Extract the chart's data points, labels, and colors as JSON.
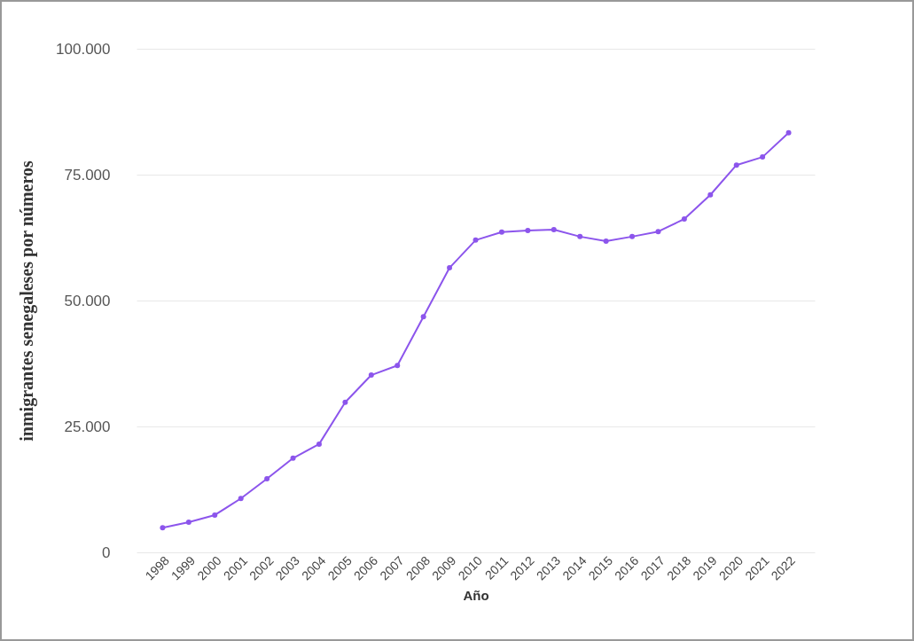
{
  "chart_data": {
    "type": "line",
    "xlabel": "Año",
    "ylabel": "inmigrantes senegaleses por números",
    "categories": [
      "1998",
      "1999",
      "2000",
      "2001",
      "2002",
      "2003",
      "2004",
      "2005",
      "2006",
      "2007",
      "2008",
      "2009",
      "2010",
      "2011",
      "2012",
      "2013",
      "2014",
      "2015",
      "2016",
      "2017",
      "2018",
      "2019",
      "2020",
      "2021",
      "2022"
    ],
    "series": [
      {
        "color": "#8c55ec",
        "values": [
          4900,
          6000,
          7400,
          10700,
          14600,
          18700,
          21500,
          29800,
          35200,
          37100,
          46800,
          56500,
          62000,
          63600,
          63900,
          64100,
          62700,
          61800,
          62700,
          63700,
          66200,
          71000,
          76900,
          78500,
          83300
        ]
      }
    ],
    "ylim": [
      0,
      100000
    ],
    "yticks": [
      {
        "value": 0,
        "label": "0"
      },
      {
        "value": 25000,
        "label": "25.000"
      },
      {
        "value": 50000,
        "label": "50.000"
      },
      {
        "value": 75000,
        "label": "75.000"
      },
      {
        "value": 100000,
        "label": "100.000"
      }
    ],
    "grid": "y",
    "marker": "circle",
    "line_style": "solid"
  }
}
